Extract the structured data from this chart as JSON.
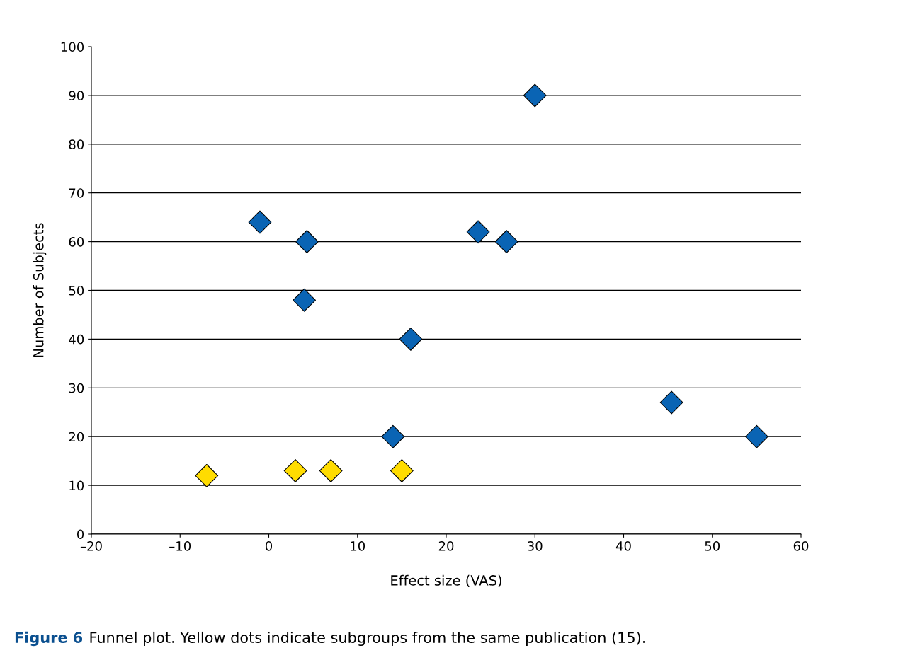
{
  "chart_data": {
    "type": "scatter",
    "xlabel": "Effect size (VAS)",
    "ylabel": "Number of Subjects",
    "series": [
      {
        "color": "#0a64b4",
        "x": [
          -1,
          4.3,
          4,
          16,
          14,
          23.6,
          26.8,
          30,
          45.4,
          55
        ],
        "values": [
          64,
          60,
          48,
          40,
          20,
          62,
          60,
          90,
          27,
          20
        ]
      },
      {
        "color": "#ffdc00",
        "x": [
          -7,
          3,
          7,
          15
        ],
        "values": [
          12,
          13,
          13,
          13
        ]
      }
    ],
    "xlim": [
      -20,
      60
    ],
    "xticks": [
      {
        "value": -20,
        "label": "–20"
      },
      {
        "value": -10,
        "label": "–10"
      },
      0,
      10,
      20,
      30,
      40,
      50,
      60
    ],
    "ylim": [
      0,
      100
    ],
    "yticks": [
      0,
      10,
      20,
      30,
      40,
      50,
      60,
      70,
      80,
      90,
      100
    ],
    "grid": "y",
    "marker": "diamond",
    "legend": false,
    "annotations": [
      "Figure 6",
      "Funnel plot. Yellow dots indicate subgroups from the same publication (15)."
    ]
  }
}
